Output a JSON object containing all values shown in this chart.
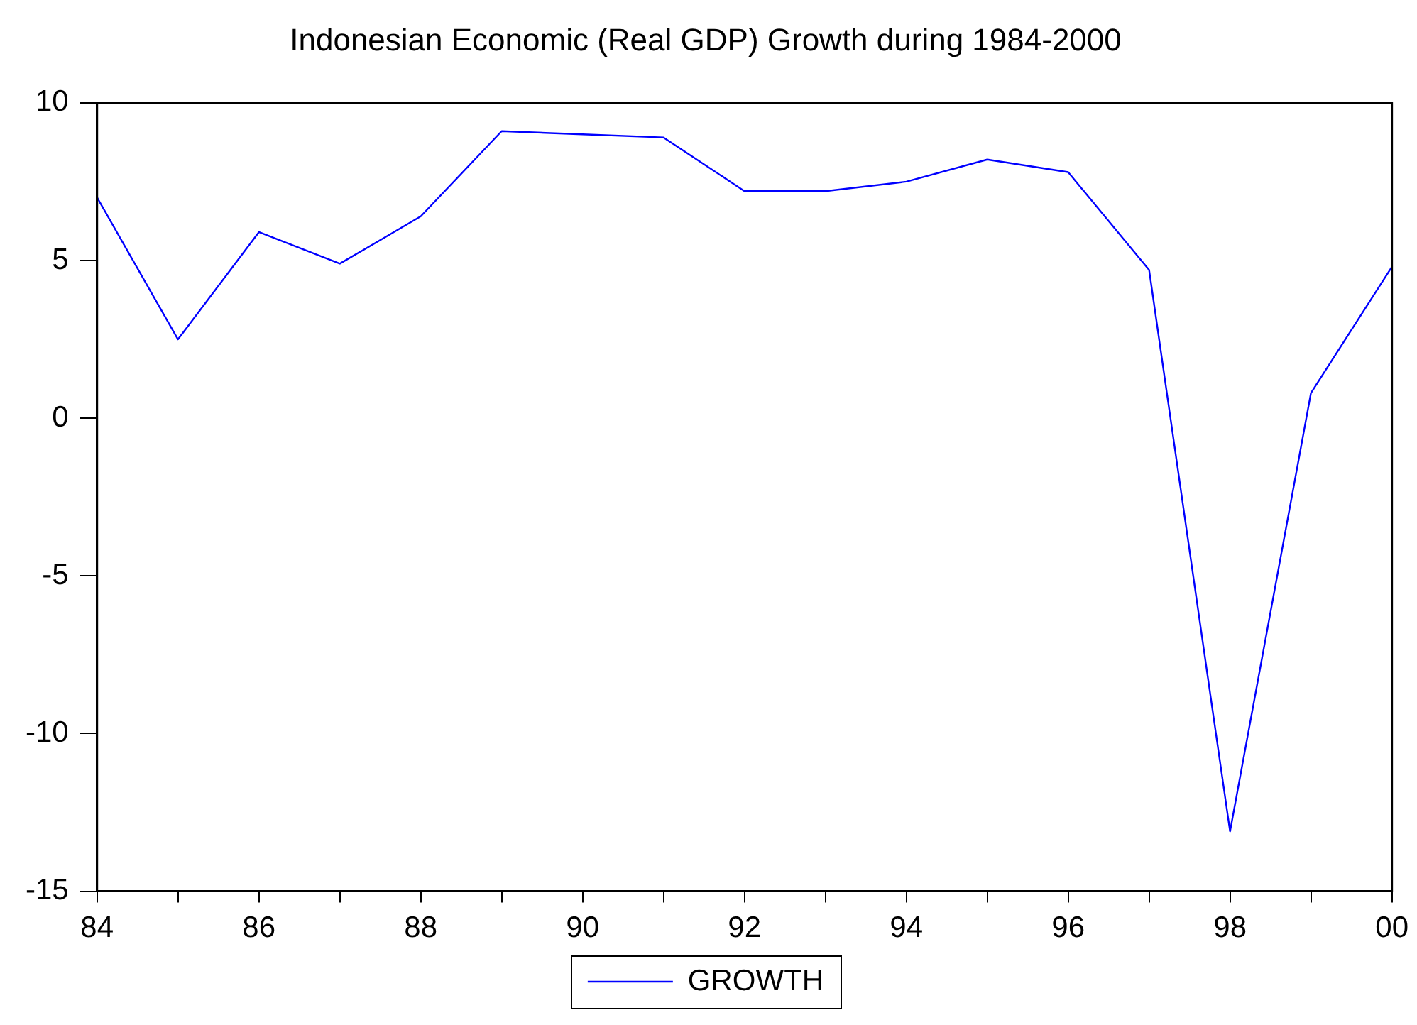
{
  "chart_data": {
    "type": "line",
    "title": "Indonesian Economic (Real GDP) Growth during 1984-2000",
    "x": [
      1984,
      1985,
      1986,
      1987,
      1988,
      1989,
      1990,
      1991,
      1992,
      1993,
      1994,
      1995,
      1996,
      1997,
      1998,
      1999,
      2000
    ],
    "series": [
      {
        "name": "GROWTH",
        "color": "#0000ff",
        "values": [
          7.0,
          2.5,
          5.9,
          4.9,
          6.4,
          9.1,
          9.0,
          8.9,
          7.2,
          7.2,
          7.5,
          8.2,
          7.8,
          4.7,
          -13.1,
          0.8,
          4.8
        ]
      }
    ],
    "xlim": [
      1984,
      2000
    ],
    "xticks": [
      {
        "value": 1984,
        "label": "84"
      },
      {
        "value": 1985,
        "label": null
      },
      {
        "value": 1986,
        "label": "86"
      },
      {
        "value": 1987,
        "label": null
      },
      {
        "value": 1988,
        "label": "88"
      },
      {
        "value": 1989,
        "label": null
      },
      {
        "value": 1990,
        "label": "90"
      },
      {
        "value": 1991,
        "label": null
      },
      {
        "value": 1992,
        "label": "92"
      },
      {
        "value": 1993,
        "label": null
      },
      {
        "value": 1994,
        "label": "94"
      },
      {
        "value": 1995,
        "label": null
      },
      {
        "value": 1996,
        "label": "96"
      },
      {
        "value": 1997,
        "label": null
      },
      {
        "value": 1998,
        "label": "98"
      },
      {
        "value": 1999,
        "label": null
      },
      {
        "value": 2000,
        "label": "00"
      }
    ],
    "ylim": [
      -15,
      10
    ],
    "yticks": [
      -15,
      -10,
      -5,
      0,
      5,
      10
    ],
    "grid": false,
    "legend": "bottom",
    "marker": "none",
    "line_style": "solid"
  }
}
